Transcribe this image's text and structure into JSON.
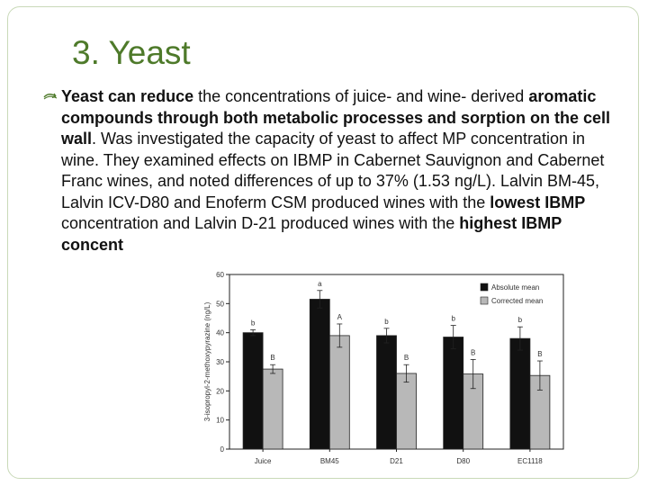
{
  "slide": {
    "title": "3. Yeast",
    "bullet": {
      "lead_bold": "Yeast can reduce",
      "part1": " the concentrations of juice- and wine- derived ",
      "bold2": "aromatic compounds through both metabolic processes and sorption on the cell wall",
      "part2": ". Was investigated the capacity of yeast to affect MP concentration in wine. They examined effects on IBMP in Cabernet Sauvignon and Cabernet Franc wines, and noted differences of up to 37% (1.53 ng/L). Lalvin BM-45, Lalvin ICV-D80 and Enoferm CSM produced wines with the ",
      "bold3": "lowest IBMP",
      "part3": " concentration and Lalvin D-21 produced wines with the ",
      "bold4": "highest",
      "part4": " IBMP concent"
    }
  },
  "colors": {
    "title": "#4e7a2a",
    "absolute_bar": "#111111",
    "corrected_bar": "#b8b8b8"
  },
  "chart_data": {
    "type": "bar",
    "categories": [
      "Juice",
      "BM45",
      "D21",
      "D80",
      "EC1118"
    ],
    "series": [
      {
        "name": "Absolute mean",
        "values": [
          40,
          51.5,
          39,
          38.5,
          38
        ],
        "errors": [
          1,
          3,
          2.5,
          4,
          4
        ],
        "labels": [
          "b",
          "a",
          "b",
          "b",
          "b"
        ]
      },
      {
        "name": "Corrected mean",
        "values": [
          27.5,
          39,
          26,
          25.8,
          25.3
        ],
        "errors": [
          1.5,
          4,
          3,
          5,
          5
        ],
        "labels": [
          "B",
          "A",
          "B",
          "B",
          "B"
        ]
      }
    ],
    "ylabel": "3-isopropyl-2-methoxypyrazine (ng/L)",
    "ylim": [
      0,
      60
    ],
    "yticks": [
      0,
      10,
      20,
      30,
      40,
      50,
      60
    ],
    "legend": "top-right",
    "grid": false
  }
}
